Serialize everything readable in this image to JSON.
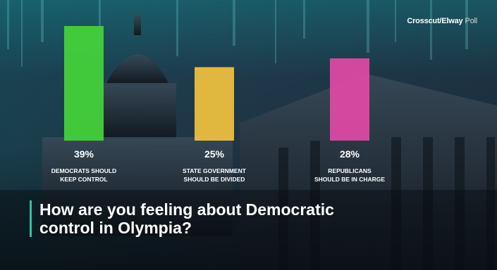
{
  "brand": {
    "name": "Crosscut/Elway",
    "suffix": "Poll"
  },
  "headline": "How are you feeling about Democratic control in Olympia?",
  "footnote": "",
  "chart_data": {
    "type": "bar",
    "categories": [
      "DEMOCRATS SHOULD KEEP CONTROL",
      "STATE GOVERNMENT SHOULD BE DIVIDED",
      "REPUBLICANS SHOULD BE IN CHARGE"
    ],
    "category_lines": [
      [
        "DEMOCRATS SHOULD",
        "KEEP CONTROL"
      ],
      [
        "STATE GOVERNMENT",
        "SHOULD BE DIVIDED"
      ],
      [
        "REPUBLICANS",
        "SHOULD BE IN CHARGE"
      ]
    ],
    "values": [
      39,
      25,
      28
    ],
    "value_labels": [
      "39%",
      "25%",
      "28%"
    ],
    "colors": [
      "#45d43a",
      "#f3c23f",
      "#e24aa6"
    ],
    "ylim": [
      0,
      39
    ],
    "grid": false,
    "legend": "none"
  }
}
